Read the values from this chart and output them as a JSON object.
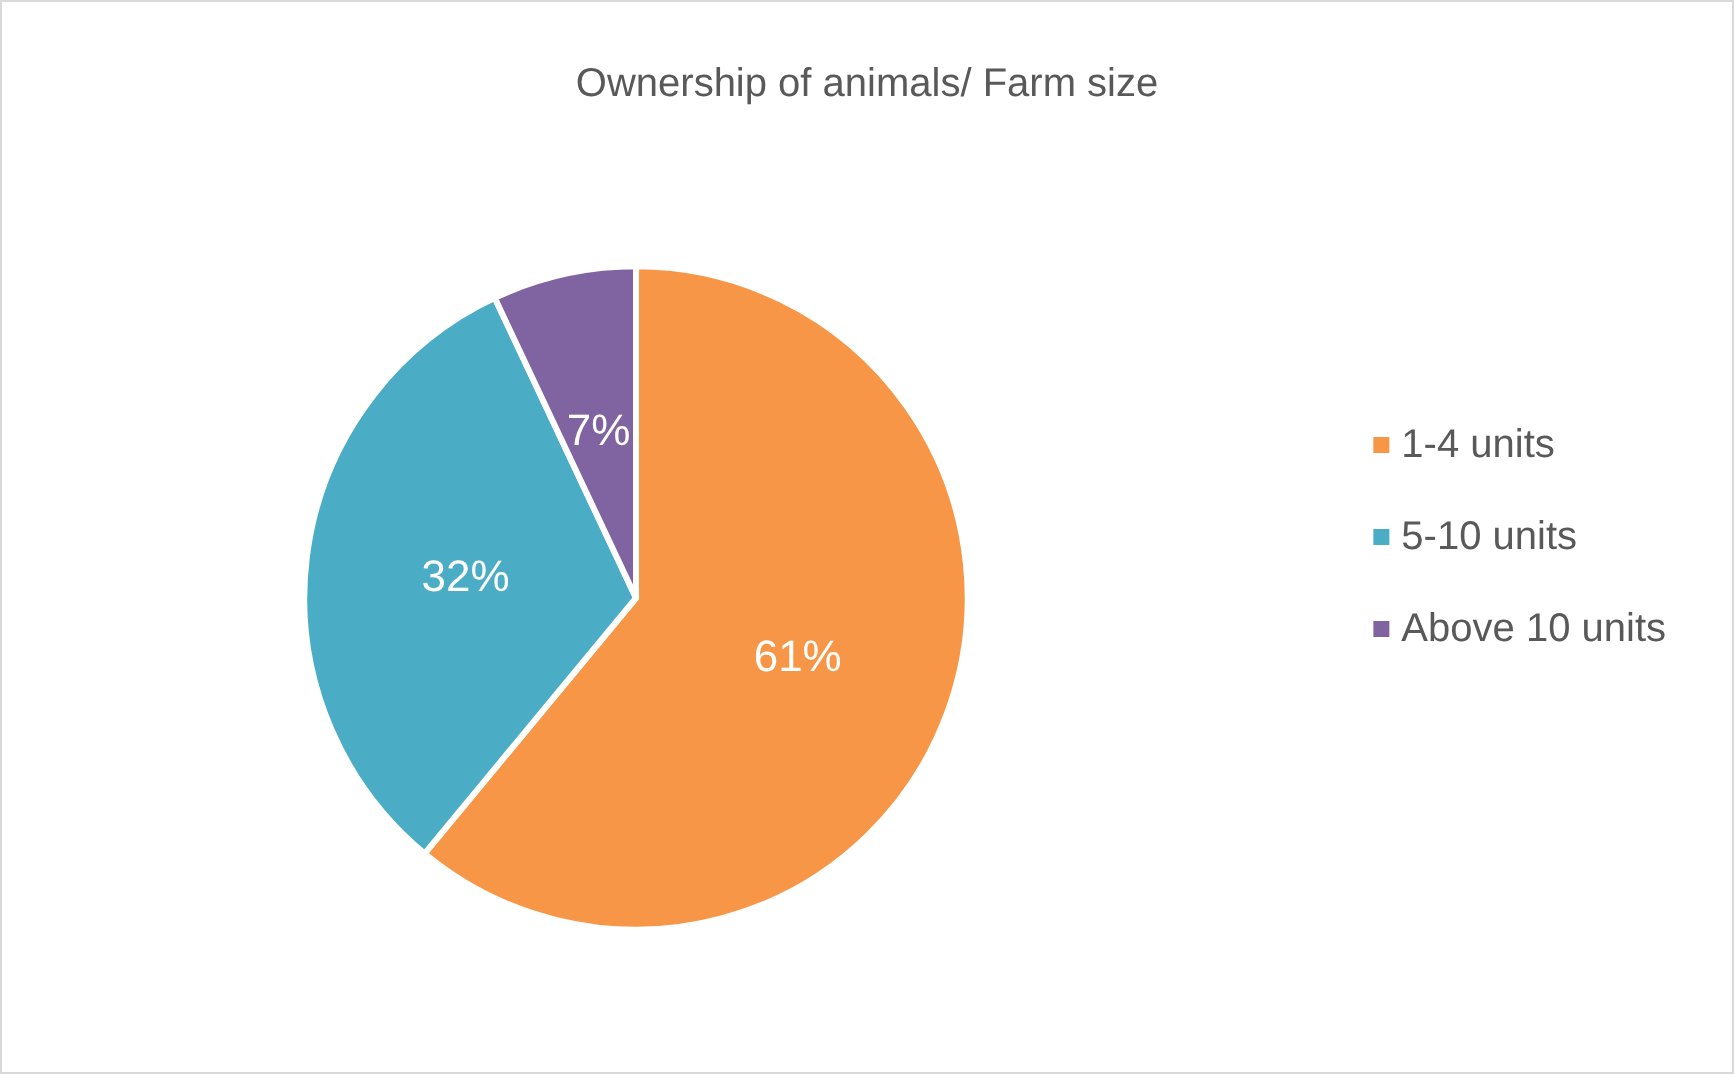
{
  "chart_data": {
    "type": "pie",
    "title": "Ownership of animals/ Farm size",
    "categories": [
      "1-4 units",
      "5-10 units",
      "Above 10 units"
    ],
    "values": [
      61,
      32,
      7
    ],
    "value_labels": [
      "61%",
      "32%",
      "7%"
    ],
    "colors": [
      "#f79646",
      "#4bacc6",
      "#8064a2"
    ],
    "legend": "right"
  }
}
